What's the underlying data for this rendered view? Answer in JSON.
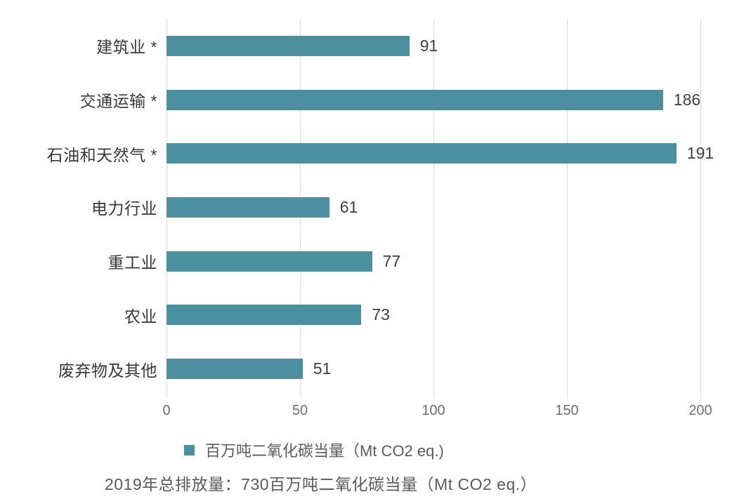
{
  "chart_data": {
    "type": "bar",
    "orientation": "horizontal",
    "title": "",
    "xlabel": "",
    "ylabel": "",
    "categories": [
      "建筑业 *",
      "交通运输 *",
      "石油和天然气 *",
      "电力行业",
      "重工业",
      "农业",
      "废弃物及其他"
    ],
    "values": [
      91,
      186,
      191,
      61,
      77,
      73,
      51
    ],
    "xlim": [
      0,
      200
    ],
    "xticks": [
      0,
      50,
      100,
      150,
      200
    ],
    "grid": true,
    "legend_position": "bottom",
    "legend_label": "百万吨二氧化碳当量（Mt CO2 eq.)",
    "caption": "2019年总排放量：730百万吨二氧化碳当量（Mt CO2 eq.）"
  },
  "colors": {
    "bar": "#4c8fa0",
    "legend_swatch": "#4c8fa0",
    "gridline": "#d9d9d9",
    "category_label": "#383838",
    "value_label": "#3f3f3f",
    "tick_label": "#6e6e6e",
    "secondary_text": "#5a5a5a",
    "background": "#ffffff"
  }
}
